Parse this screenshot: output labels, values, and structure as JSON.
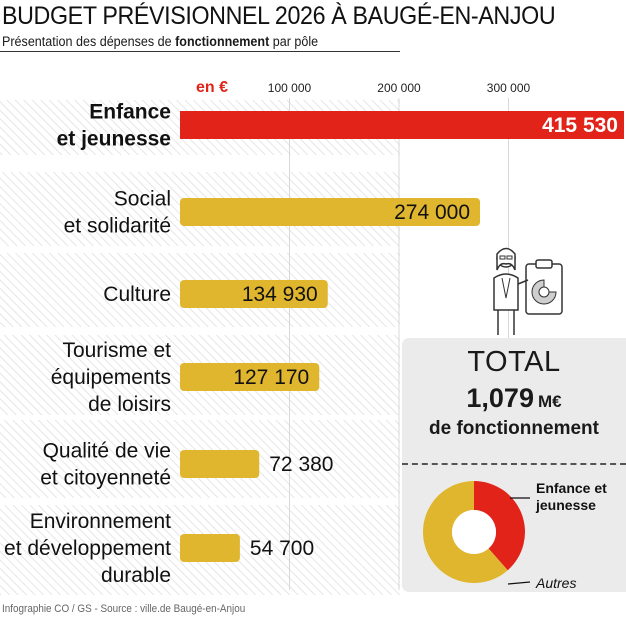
{
  "header": {
    "title": "BUDGET PRÉVISIONNEL 2026 À BAUGÉ-EN-ANJOU",
    "subtitle_pre": "Présentation des dépenses de ",
    "subtitle_bold": "fonctionnement",
    "subtitle_post": " par pôle"
  },
  "chart_data": {
    "type": "bar",
    "orientation": "horizontal",
    "title": "BUDGET PRÉVISIONNEL 2026 À BAUGÉ-EN-ANJOU",
    "subtitle": "Présentation des dépenses de fonctionnement par pôle",
    "unit_label": "en €",
    "xlim": [
      0,
      400000
    ],
    "ticks": [
      {
        "value": 100000,
        "label": "100 000"
      },
      {
        "value": 200000,
        "label": "200 000"
      },
      {
        "value": 300000,
        "label": "300 000"
      }
    ],
    "categories": [
      {
        "lines": [
          "Enfance",
          "et jeunesse"
        ],
        "value": 415530,
        "label": "415 530",
        "highlight": true
      },
      {
        "lines": [
          "Social",
          "et solidarité"
        ],
        "value": 274000,
        "label": "274 000",
        "highlight": false
      },
      {
        "lines": [
          "Culture"
        ],
        "value": 134930,
        "label": "134 930",
        "highlight": false
      },
      {
        "lines": [
          "Tourisme et",
          "équipements",
          "de loisirs"
        ],
        "value": 127170,
        "label": "127 170",
        "highlight": false
      },
      {
        "lines": [
          "Qualité de vie",
          "et citoyenneté"
        ],
        "value": 72380,
        "label": "72 380",
        "highlight": false
      },
      {
        "lines": [
          "Environnement",
          "et développement",
          "durable"
        ],
        "value": 54700,
        "label": "54 700",
        "highlight": false
      }
    ],
    "colors": {
      "highlight": "#e2231a",
      "default": "#e0b62e"
    },
    "donut": {
      "slices": [
        {
          "name": "Enfance et jeunesse",
          "value": 415530,
          "color": "#e2231a"
        },
        {
          "name": "Autres",
          "value": 663180,
          "color": "#e0b62e"
        }
      ]
    }
  },
  "total": {
    "title": "TOTAL",
    "value": "1,079",
    "unit": "M€",
    "caption": "de fonctionnement",
    "legend_highlight_line1": "Enfance et",
    "legend_highlight_line2": "jeunesse",
    "legend_other": "Autres"
  },
  "credit": "Infographie CO / GS - Source : ville.de Baugé-en-Anjou"
}
